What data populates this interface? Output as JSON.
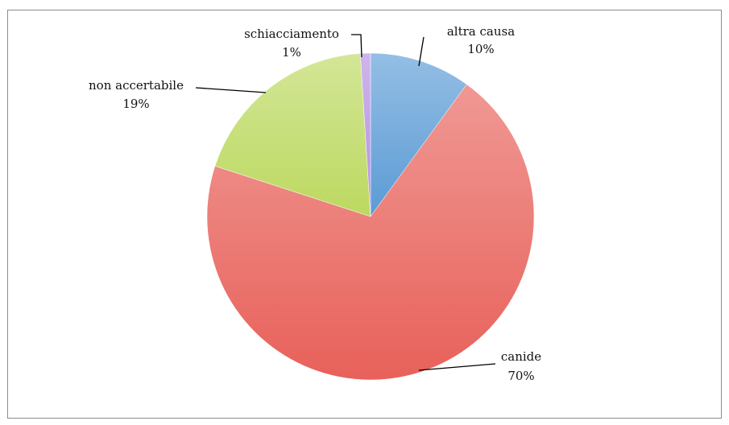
{
  "chart_data": {
    "type": "pie",
    "title": "",
    "slices": [
      {
        "label": "altra causa",
        "value": 10,
        "value_text": "10%",
        "color": "#5b9bd5"
      },
      {
        "label": "canide",
        "value": 70,
        "value_text": "70%",
        "color": "#e8615a"
      },
      {
        "label": "non accertabile",
        "value": 19,
        "value_text": "19%",
        "color": "#bcd95f"
      },
      {
        "label": "schiacciamento",
        "value": 1,
        "value_text": "1%",
        "color": "#b48ee0"
      }
    ],
    "legend": "none"
  }
}
